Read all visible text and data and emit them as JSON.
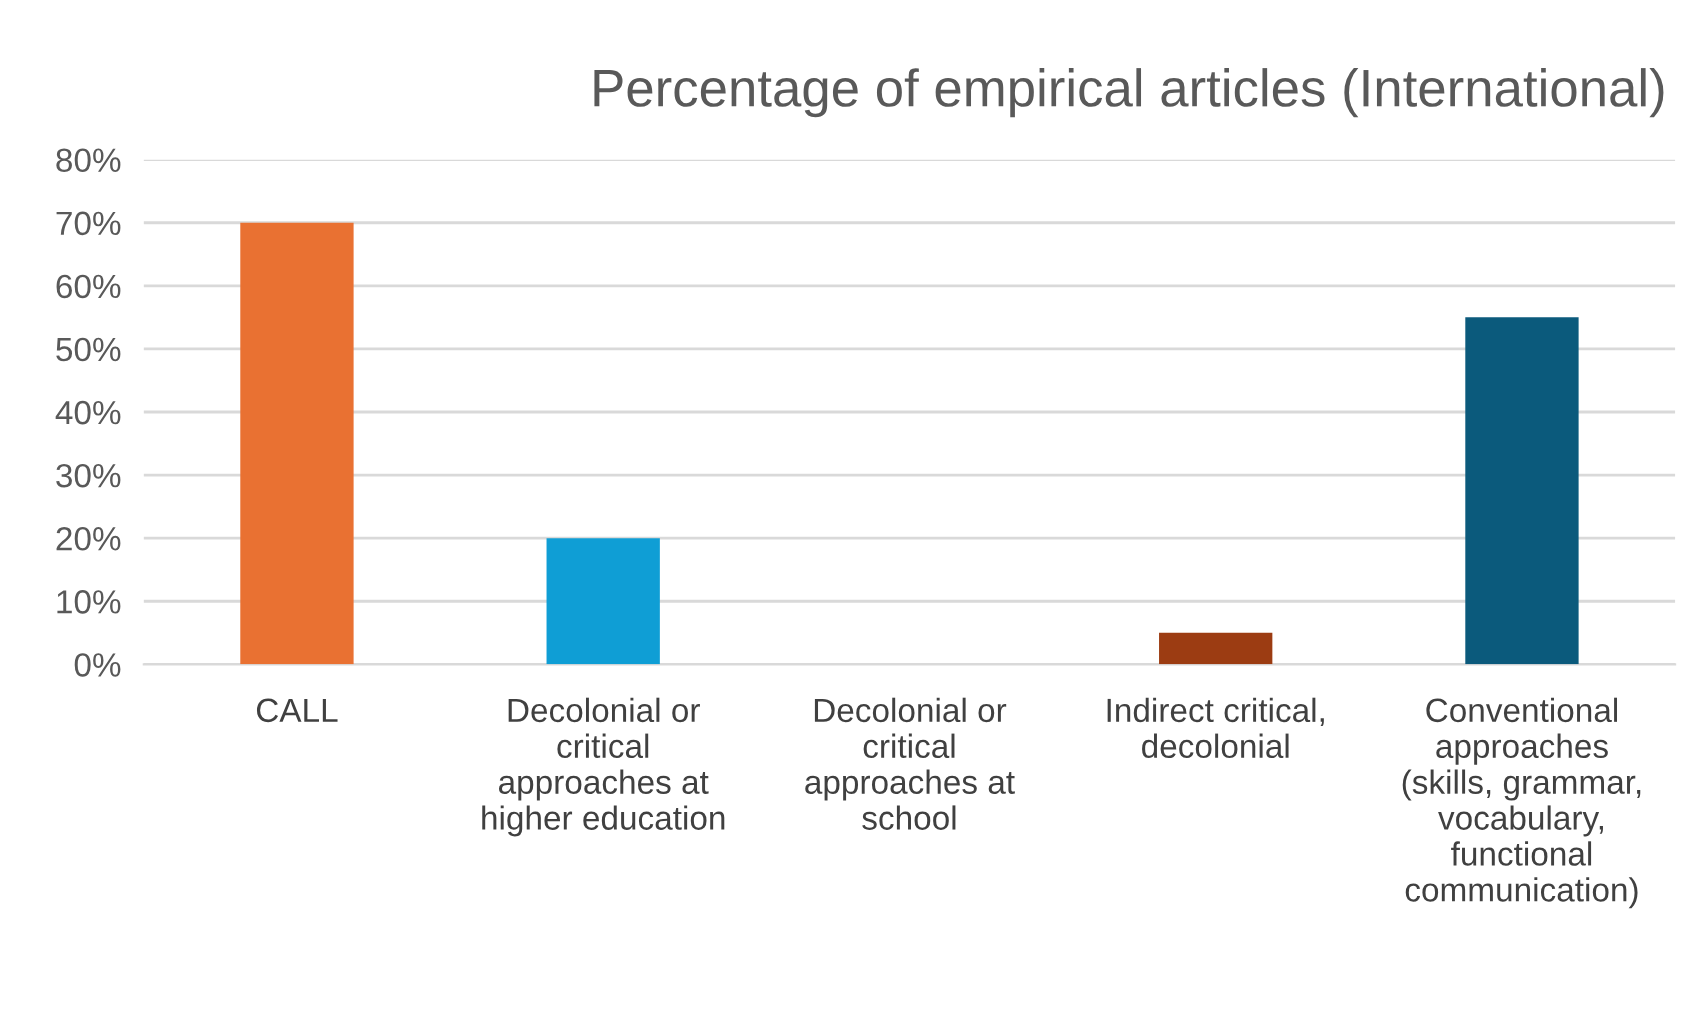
{
  "chart_data": {
    "type": "bar",
    "title": "Percentage of empirical articles (International)",
    "categories": [
      "CALL",
      "Decolonial or\ncritical\napproaches at\nhigher education",
      "Decolonial or\ncritical\napproaches at\nschool",
      "Indirect critical,\ndecolonial",
      "Conventional\napproaches\n(skills, grammar,\nvocabulary,\nfunctional\ncommunication)"
    ],
    "values": [
      70,
      20,
      0,
      5,
      55
    ],
    "colors": [
      "#e97132",
      "#0f9ed5",
      "#0f9ed5",
      "#9c3c12",
      "#0b5a7c"
    ],
    "ylim": [
      0,
      80
    ],
    "yticks": [
      {
        "value": 0,
        "label": "0%"
      },
      {
        "value": 10,
        "label": "10%"
      },
      {
        "value": 20,
        "label": "20%"
      },
      {
        "value": 30,
        "label": "30%"
      },
      {
        "value": 40,
        "label": "40%"
      },
      {
        "value": 50,
        "label": "50%"
      },
      {
        "value": 60,
        "label": "60%"
      },
      {
        "value": 70,
        "label": "70%"
      },
      {
        "value": 80,
        "label": "80%"
      }
    ],
    "grid": "y"
  }
}
